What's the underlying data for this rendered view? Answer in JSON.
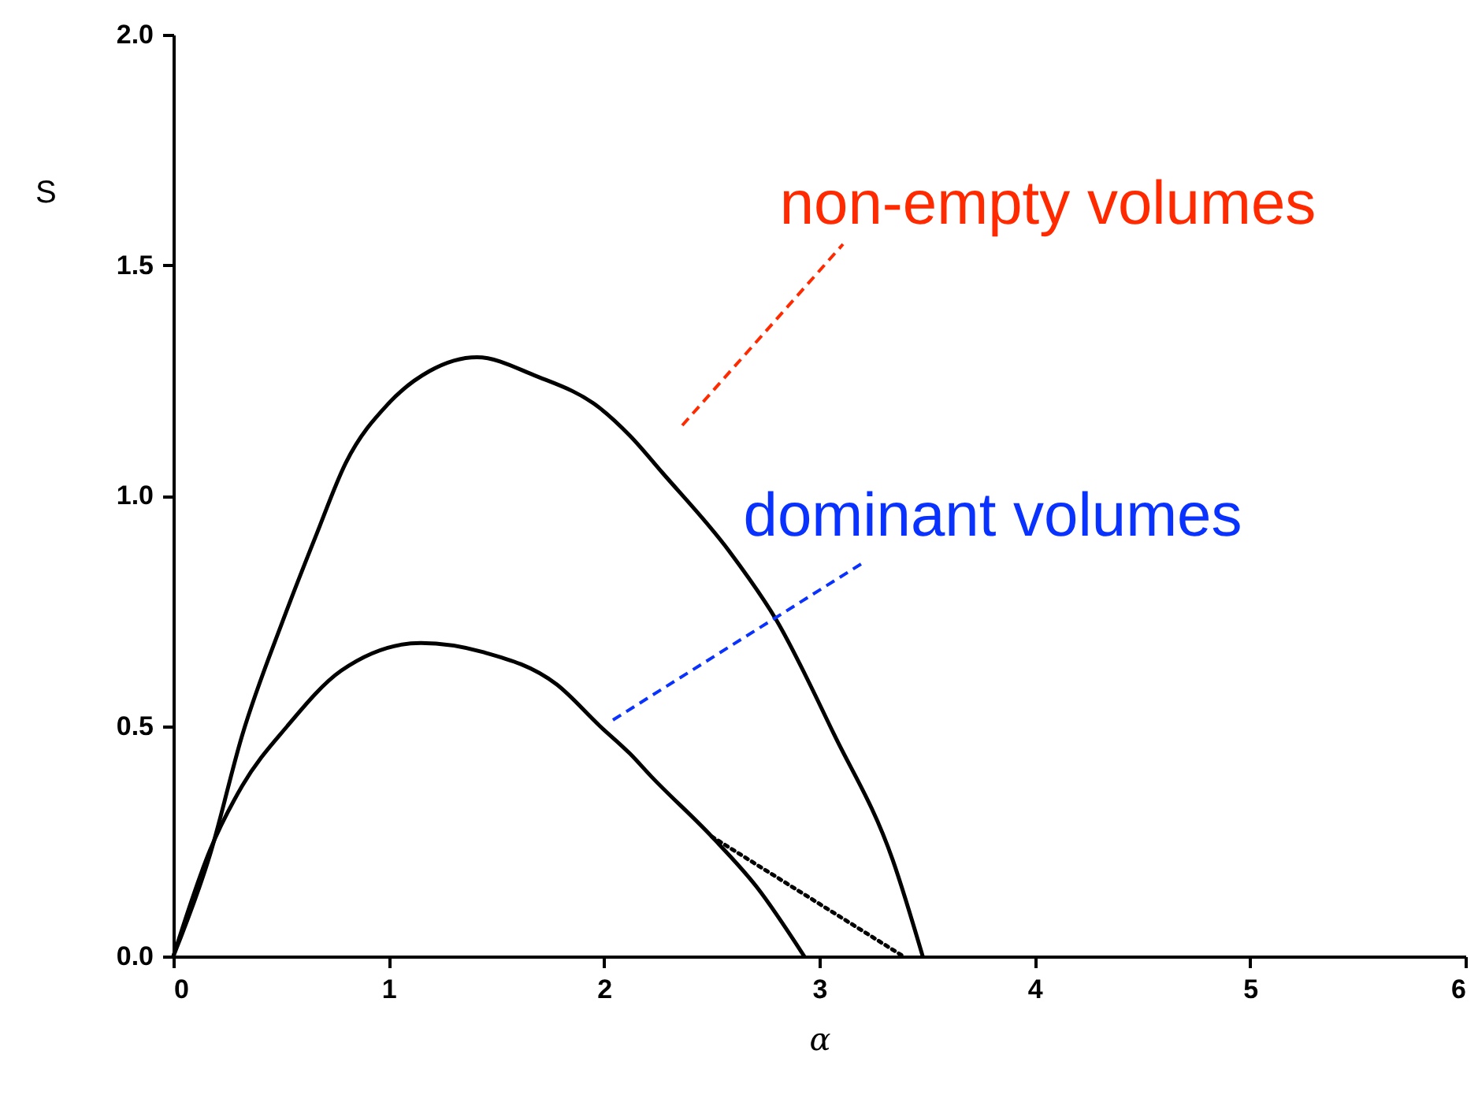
{
  "chart_data": {
    "type": "line",
    "xlabel": "α",
    "ylabel": "S",
    "xlim": [
      0,
      6
    ],
    "xticks": [
      0,
      1,
      2,
      3,
      4,
      5,
      6
    ],
    "ylim": [
      0,
      2
    ],
    "yticks": [
      {
        "value": 0,
        "label": "0.0"
      },
      {
        "value": 0.5,
        "label": "0.5"
      },
      {
        "value": 1,
        "label": "1.0"
      },
      1.5,
      {
        "value": 2,
        "label": "2.0"
      }
    ],
    "grid": false,
    "marker": "none",
    "line_style": "solid",
    "series": [
      {
        "color": "#000000",
        "x": [
          0,
          0.17,
          0.32,
          0.51,
          0.66,
          0.8,
          1.0,
          1.19,
          1.41,
          1.68,
          1.98,
          2.12,
          2.27,
          2.58,
          2.8,
          3.07,
          3.34,
          3.48
        ],
        "values": [
          0,
          0.22,
          0.48,
          0.73,
          0.91,
          1.07,
          1.2,
          1.27,
          1.3,
          1.26,
          1.19,
          1.13,
          1.05,
          0.88,
          0.73,
          0.48,
          0.21,
          0
        ]
      },
      {
        "color": "#000000",
        "x": [
          0,
          0.17,
          0.32,
          0.53,
          0.78,
          1.15,
          1.44,
          1.78,
          1.98,
          2.12,
          2.22,
          2.5,
          2.71,
          2.93
        ],
        "values": [
          0,
          0.23,
          0.37,
          0.5,
          0.62,
          0.68,
          0.66,
          0.59,
          0.5,
          0.44,
          0.39,
          0.26,
          0.15,
          0
        ]
      },
      {
        "type": "line",
        "line_style": "dotted",
        "color": "#000000",
        "x": [
          2.5,
          3.39
        ],
        "values": [
          0.26,
          0
        ]
      }
    ],
    "annotations": [
      "non-empty volumes",
      "dominant volumes"
    ]
  }
}
